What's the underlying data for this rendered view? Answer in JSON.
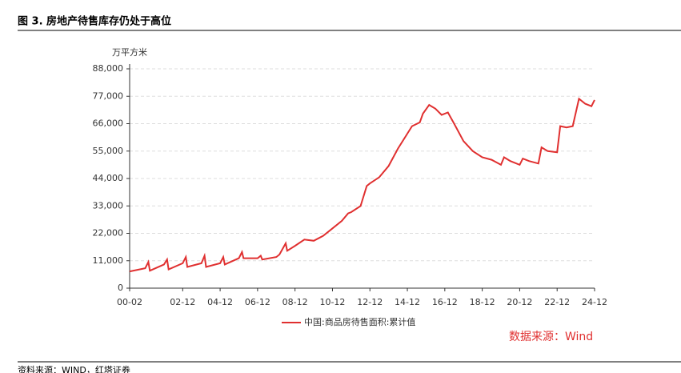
{
  "figure_title": "图 3. 房地产待售库存仍处于高位",
  "footer": "资料来源：WIND，红塔证券",
  "chart_data": {
    "type": "line",
    "y_label": "万平方米",
    "source_note": "数据来源：Wind",
    "x": [
      "00-02",
      "00-12",
      "01-02",
      "01-03",
      "01-12",
      "02-02",
      "02-03",
      "02-12",
      "03-02",
      "03-03",
      "03-12",
      "04-02",
      "04-03",
      "04-12",
      "05-02",
      "05-03",
      "05-12",
      "06-02",
      "06-03",
      "06-12",
      "07-02",
      "07-03",
      "07-12",
      "08-02",
      "08-06",
      "08-07",
      "08-12",
      "09-06",
      "09-12",
      "10-06",
      "10-12",
      "11-06",
      "11-10",
      "11-12",
      "12-06",
      "12-10",
      "12-12",
      "13-06",
      "13-12",
      "14-06",
      "14-12",
      "15-03",
      "15-08",
      "15-10",
      "16-02",
      "16-06",
      "16-10",
      "17-02",
      "17-06",
      "17-12",
      "18-06",
      "18-12",
      "19-06",
      "19-12",
      "20-02",
      "20-06",
      "20-12",
      "21-02",
      "21-06",
      "21-12",
      "22-02",
      "22-06",
      "22-12",
      "23-02",
      "23-06",
      "23-10",
      "24-02",
      "24-06",
      "24-10",
      "24-12"
    ],
    "series": [
      {
        "name": "中国:商品房待售面积:累计值",
        "color": "#e03030",
        "values": [
          6700,
          8000,
          10500,
          7000,
          9500,
          11500,
          7500,
          10000,
          12500,
          8500,
          10000,
          13000,
          8500,
          10000,
          12500,
          9500,
          12000,
          14500,
          12000,
          12000,
          13000,
          11500,
          12500,
          13500,
          18000,
          15000,
          17000,
          19500,
          19000,
          21000,
          24000,
          27000,
          30000,
          30500,
          33000,
          41000,
          42000,
          44500,
          49000,
          56000,
          62000,
          65000,
          66500,
          70000,
          73500,
          72000,
          69500,
          70500,
          66000,
          59000,
          55000,
          52500,
          51500,
          49500,
          52500,
          51000,
          49500,
          52000,
          51000,
          50000,
          56500,
          55000,
          54500,
          65000,
          64500,
          65000,
          76000,
          74000,
          73000,
          75500
        ]
      }
    ],
    "xlim": [
      "00-02",
      "24-12"
    ],
    "xticks": [
      "00-02",
      "02-12",
      "04-12",
      "06-12",
      "08-12",
      "10-12",
      "12-12",
      "14-12",
      "16-12",
      "18-12",
      "20-12",
      "22-12",
      "24-12"
    ],
    "ylim": [
      0,
      88000
    ],
    "yticks": [
      0,
      {
        "value": 11000,
        "label": "11,000"
      },
      {
        "value": 22000,
        "label": "22,000"
      },
      {
        "value": 33000,
        "label": "33,000"
      },
      {
        "value": 44000,
        "label": "44,000"
      },
      {
        "value": 55000,
        "label": "55,000"
      },
      {
        "value": 66000,
        "label": "66,000"
      },
      {
        "value": 77000,
        "label": "77,000"
      },
      {
        "value": 88000,
        "label": "88,000"
      }
    ],
    "grid": true
  }
}
